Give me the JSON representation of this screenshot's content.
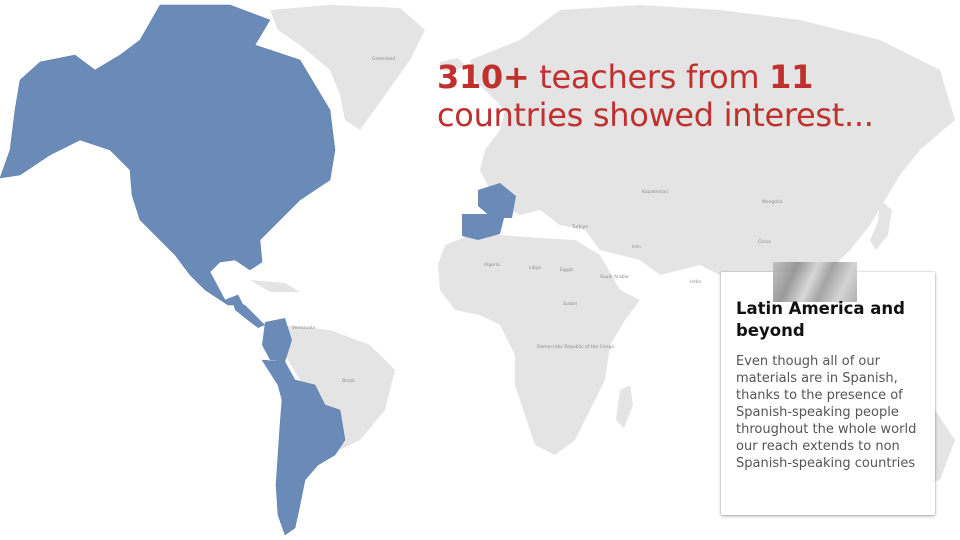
{
  "headline": {
    "part1_bold": "310+",
    "part2": " teachers from ",
    "part3_bold": "11",
    "part4": "countries showed interest..."
  },
  "card": {
    "title": "Latin America and beyond",
    "body": "Even though all of our materials are in Spanish, thanks to the presence of Spanish-speaking people throughout the whole world our reach extends to non Spanish-speaking countries"
  },
  "map": {
    "highlight_color": "#6a8bb8",
    "land_color": "#e4e4e4",
    "highlighted_regions": [
      "North America",
      "Spain",
      "France",
      "Mexico",
      "Panama",
      "Colombia",
      "Peru",
      "Chile",
      "Argentina"
    ],
    "labels": {
      "greenland": "Greenland",
      "brazil": "Brazil",
      "algeria": "Algeria",
      "libya": "Libya",
      "egypt": "Egypt",
      "sudan": "Sudan",
      "kazakhstan": "Kazakhstan",
      "mongolia": "Mongolia",
      "china": "China",
      "india": "India",
      "iran": "Iran",
      "turkey": "Turkiye",
      "saudi": "Saudi Arabia",
      "venezuela": "Venezuela",
      "drc": "Democratic Republic of the Congo"
    }
  }
}
